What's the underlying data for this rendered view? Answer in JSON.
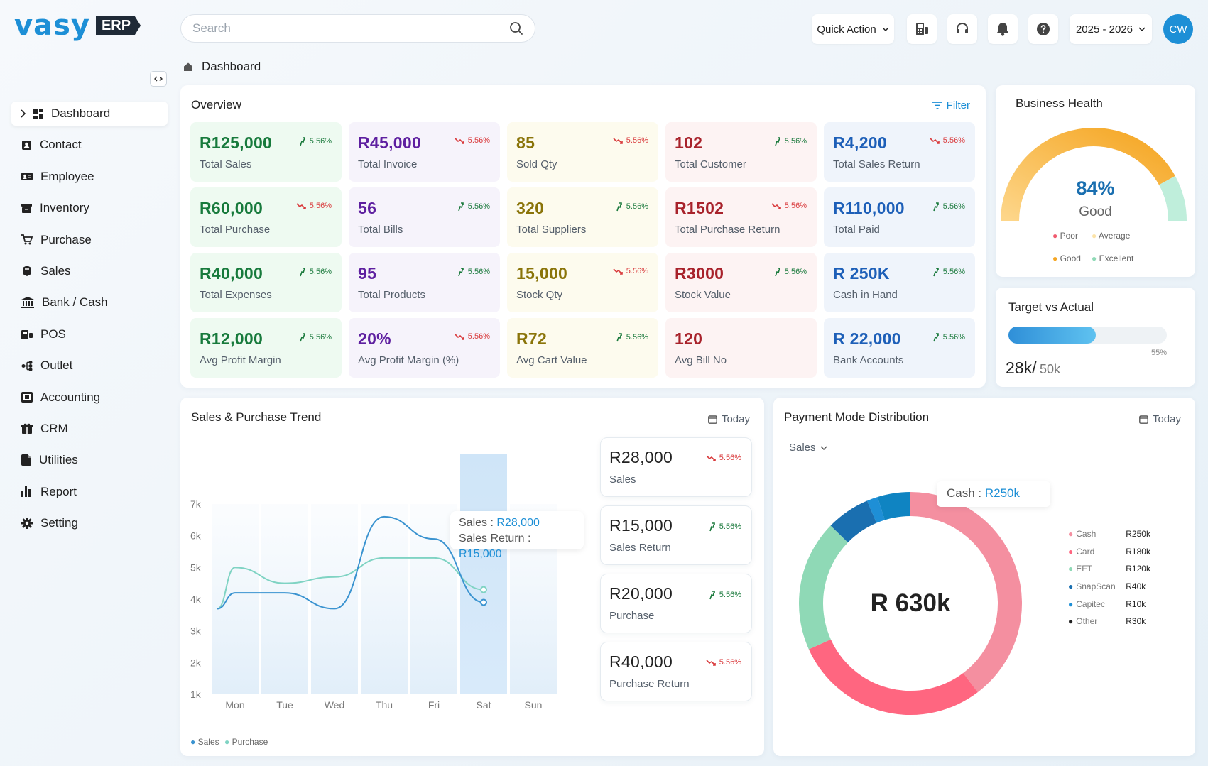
{
  "brand": {
    "word": "vasy",
    "tag": "ERP"
  },
  "search": {
    "placeholder": "Search"
  },
  "header": {
    "quick_action": "Quick Action",
    "year": "2025 - 2026",
    "avatar": "CW",
    "icons": [
      "pos-terminal-icon",
      "headset-icon",
      "bell-icon",
      "help-icon"
    ]
  },
  "breadcrumb": {
    "title": "Dashboard"
  },
  "sidebar": {
    "items": [
      {
        "label": "Dashboard",
        "icon": "dashboard-icon",
        "active": true
      },
      {
        "label": "Contact",
        "icon": "contact-icon"
      },
      {
        "label": "Employee",
        "icon": "employee-icon"
      },
      {
        "label": "Inventory",
        "icon": "inventory-icon"
      },
      {
        "label": "Purchase",
        "icon": "cart-icon"
      },
      {
        "label": "Sales",
        "icon": "sales-icon"
      },
      {
        "label": "Bank / Cash",
        "icon": "bank-icon"
      },
      {
        "label": "POS",
        "icon": "pos-icon"
      },
      {
        "label": "Outlet",
        "icon": "outlet-icon"
      },
      {
        "label": "Accounting",
        "icon": "accounting-icon"
      },
      {
        "label": "CRM",
        "icon": "crm-icon"
      },
      {
        "label": "Utilities",
        "icon": "utilities-icon"
      },
      {
        "label": "Report",
        "icon": "report-icon"
      },
      {
        "label": "Setting",
        "icon": "gear-icon"
      }
    ]
  },
  "overview": {
    "title": "Overview",
    "filter": "Filter",
    "tiles": [
      {
        "value": "R125,000",
        "label": "Total Sales",
        "trend": "5.56%",
        "dir": "up",
        "color": "green"
      },
      {
        "value": "R45,000",
        "label": "Total Invoice",
        "trend": "5.56%",
        "dir": "down",
        "color": "purple"
      },
      {
        "value": "85",
        "label": "Sold Qty",
        "trend": "5.56%",
        "dir": "down",
        "color": "yellow"
      },
      {
        "value": "102",
        "label": "Total Customer",
        "trend": "5.56%",
        "dir": "up",
        "color": "red"
      },
      {
        "value": "R4,200",
        "label": "Total Sales Return",
        "trend": "5.56%",
        "dir": "down",
        "color": "blue"
      },
      {
        "value": "R60,000",
        "label": "Total Purchase",
        "trend": "5.56%",
        "dir": "down",
        "color": "green"
      },
      {
        "value": "56",
        "label": "Total Bills",
        "trend": "5.56%",
        "dir": "up",
        "color": "purple"
      },
      {
        "value": "320",
        "label": "Total Suppliers",
        "trend": "5.56%",
        "dir": "up",
        "color": "yellow"
      },
      {
        "value": "R1502",
        "label": "Total Purchase Return",
        "trend": "5.56%",
        "dir": "down",
        "color": "red"
      },
      {
        "value": "R110,000",
        "label": "Total Paid",
        "trend": "5.56%",
        "dir": "up",
        "color": "blue"
      },
      {
        "value": "R40,000",
        "label": "Total Expenses",
        "trend": "5.56%",
        "dir": "up",
        "color": "green"
      },
      {
        "value": "95",
        "label": "Total Products",
        "trend": "5.56%",
        "dir": "up",
        "color": "purple"
      },
      {
        "value": "15,000",
        "label": "Stock Qty",
        "trend": "5.56%",
        "dir": "down",
        "color": "yellow"
      },
      {
        "value": "R3000",
        "label": "Stock Value",
        "trend": "5.56%",
        "dir": "up",
        "color": "red"
      },
      {
        "value": "R 250K",
        "label": "Cash in Hand",
        "trend": "5.56%",
        "dir": "up",
        "color": "blue"
      },
      {
        "value": "R12,000",
        "label": "Avg Profit Margin",
        "trend": "5.56%",
        "dir": "up",
        "color": "green"
      },
      {
        "value": "20%",
        "label": "Avg Profit Margin (%)",
        "trend": "5.56%",
        "dir": "down",
        "color": "purple"
      },
      {
        "value": "R72",
        "label": "Avg Cart Value",
        "trend": "5.56%",
        "dir": "up",
        "color": "yellow"
      },
      {
        "value": "120",
        "label": "Avg Bill No",
        "trend": "",
        "dir": "",
        "color": "red"
      },
      {
        "value": "R 22,000",
        "label": "Bank Accounts",
        "trend": "5.56%",
        "dir": "up",
        "color": "blue"
      }
    ]
  },
  "health": {
    "title": "Business Health",
    "percent": "84%",
    "percent_value": 84,
    "status": "Good",
    "legend": [
      {
        "label": "Poor",
        "color": "#f05a6e"
      },
      {
        "label": "Average",
        "color": "#fce3a8"
      },
      {
        "label": "Good",
        "color": "#f5a623"
      },
      {
        "label": "Excellent",
        "color": "#8fd9b6"
      }
    ]
  },
  "target": {
    "title": "Target vs Actual",
    "percent_label": "55%",
    "progress": 55,
    "actual": "28k/",
    "goal": "50k"
  },
  "trend_chart": {
    "title": "Sales & Purchase Trend",
    "period": "Today",
    "tooltip": {
      "sales_label": "Sales :",
      "sales_value": "R28,000",
      "return_label": "Sales Return :",
      "return_value": "R15,000"
    },
    "stats": [
      {
        "value": "R28,000",
        "label": "Sales",
        "trend": "5.56%",
        "dir": "down"
      },
      {
        "value": "R15,000",
        "label": "Sales Return",
        "trend": "5.56%",
        "dir": "up"
      },
      {
        "value": "R20,000",
        "label": "Purchase",
        "trend": "5.56%",
        "dir": "up"
      },
      {
        "value": "R40,000",
        "label": "Purchase Return",
        "trend": "5.56%",
        "dir": "down"
      }
    ]
  },
  "payment": {
    "title": "Payment Mode Distribution",
    "period": "Today",
    "selector": "Sales",
    "total": "R 630k",
    "tooltip_label": "Cash :",
    "tooltip_value": "R250k",
    "legend": [
      {
        "label": "Cash",
        "value": "R250k",
        "color": "#f48fa0"
      },
      {
        "label": "Card",
        "value": "R180k",
        "color": "#ff6680"
      },
      {
        "label": "EFT",
        "value": "R120k",
        "color": "#8fd9b6"
      },
      {
        "label": "SnapScan",
        "value": "R40k",
        "color": "#1a6fb0"
      },
      {
        "label": "Capitec",
        "value": "R10k",
        "color": "#1e8fd6"
      },
      {
        "label": "Other",
        "value": "R30k",
        "color": "#222222"
      }
    ]
  },
  "chart_data": [
    {
      "type": "line",
      "categories": [
        "Mon",
        "Tue",
        "Wed",
        "Thu",
        "Fri",
        "Sat",
        "Sun"
      ],
      "ylim": [
        1,
        7
      ],
      "yticks": [
        "1k",
        "2k",
        "3k",
        "4k",
        "5k",
        "6k",
        "7k"
      ],
      "series": [
        {
          "name": "Sales",
          "color": "#7fd3c3",
          "values": [
            3.7,
            5.0,
            4.5,
            4.7,
            5.3,
            5.3,
            4.3
          ]
        },
        {
          "name": "Purchase",
          "color": "#3a93d0",
          "values": [
            3.7,
            4.2,
            4.2,
            3.7,
            6.6,
            5.9,
            3.9
          ]
        }
      ],
      "highlight": "Sat",
      "legend": [
        "Sales",
        "Purchase"
      ]
    },
    {
      "type": "pie",
      "categories": [
        "Cash",
        "Card",
        "EFT",
        "SnapScan",
        "Capitec",
        "Other"
      ],
      "values": [
        250,
        180,
        120,
        40,
        10,
        30
      ],
      "total": "R 630k"
    }
  ]
}
